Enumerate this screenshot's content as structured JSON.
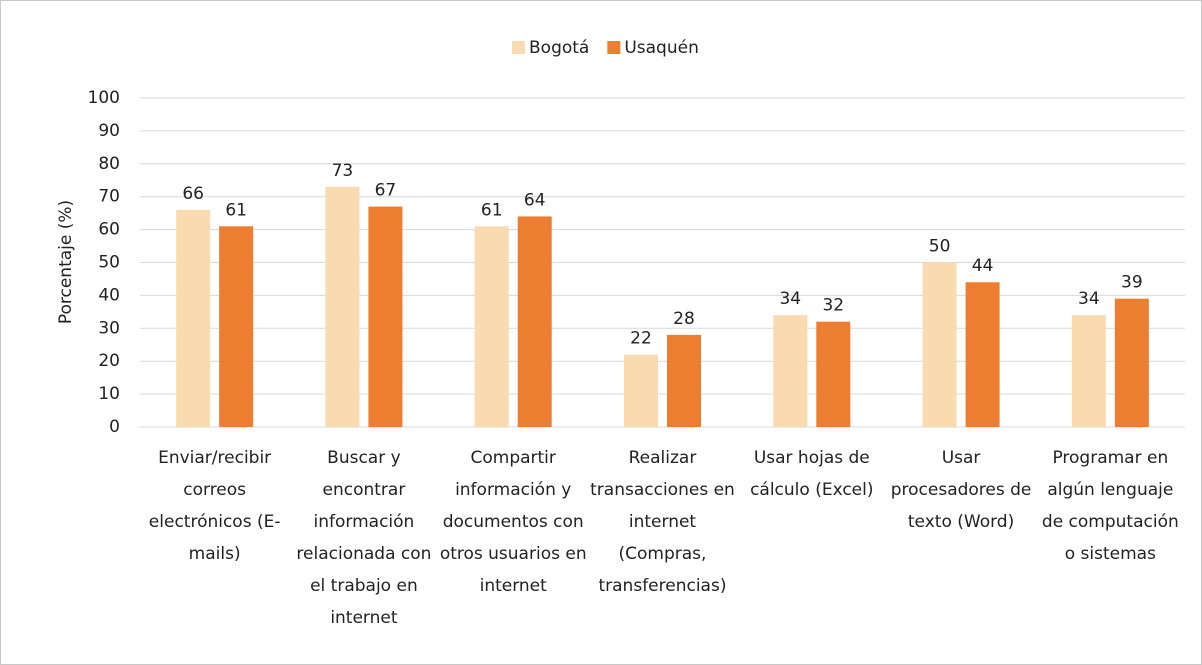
{
  "chart_data": {
    "type": "bar",
    "y_axis_label": "Porcentaje (%)",
    "categories": [
      "Enviar/recibir correos electrónicos (E-mails)",
      "Buscar y encontrar información relacionada con el trabajo en internet",
      "Compartir información y documentos con otros usuarios en internet",
      "Realizar transacciones en internet (Compras, transferencias)",
      "Usar hojas de cálculo (Excel)",
      "Usar procesadores de texto (Word)",
      "Programar en algún lenguaje de computación o sistemas"
    ],
    "series": [
      {
        "name": "Bogotá",
        "color": "#fadbb0",
        "values": [
          66,
          73,
          61,
          22,
          34,
          50,
          34
        ]
      },
      {
        "name": "Usaquén",
        "color": "#ed7d31",
        "values": [
          61,
          67,
          64,
          28,
          32,
          44,
          39
        ]
      }
    ],
    "ylim": [
      0,
      100
    ],
    "yticks": [
      0,
      10,
      20,
      30,
      40,
      50,
      60,
      70,
      80,
      90,
      100
    ],
    "grid": true,
    "legend": "top",
    "data_labels": true
  }
}
